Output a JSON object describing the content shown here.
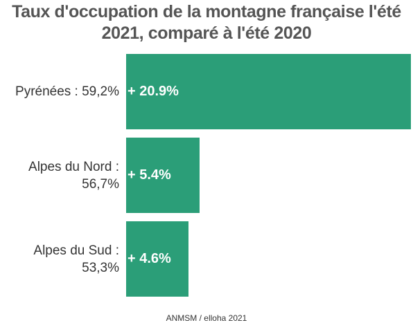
{
  "chart_data": {
    "type": "bar",
    "orientation": "horizontal",
    "title": "Taux d'occupation de la montagne française l'été 2021, comparé à l'été 2020",
    "categories": [
      "Pyrénées : 59,2%",
      "Alpes du Nord : 56,7%",
      "Alpes du Sud : 53,3%"
    ],
    "values": [
      20.9,
      5.4,
      4.6
    ],
    "value_labels": [
      "+ 20.9%",
      "+ 5.4%",
      "+ 4.6%"
    ],
    "color": "#2b9e78",
    "source": "ANMSM / elloha 2021"
  }
}
